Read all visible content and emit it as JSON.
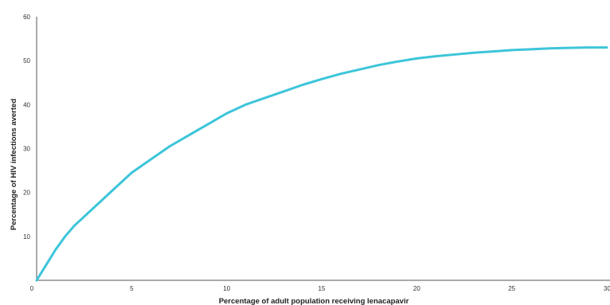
{
  "chart_data": {
    "type": "line",
    "title": "",
    "xlabel": "Percentage of adult population receiving lenacapavir",
    "ylabel": "Percentage of HIV infections averted",
    "xlim": [
      0,
      30
    ],
    "ylim": [
      0,
      60
    ],
    "x_ticks": [
      0,
      5,
      10,
      15,
      20,
      25,
      30
    ],
    "y_ticks": [
      10,
      20,
      30,
      40,
      50,
      60
    ],
    "grid": false,
    "legend": "none",
    "series": [
      {
        "color": "#3dc5da",
        "x": [
          0,
          0.5,
          1,
          1.5,
          2,
          3,
          4,
          5,
          6,
          7,
          8,
          9,
          10,
          11,
          12,
          13,
          14,
          15,
          16,
          17,
          18,
          19,
          20,
          21,
          22,
          23,
          24,
          25,
          26,
          27,
          28,
          29,
          30
        ],
        "y": [
          0,
          3.5,
          7,
          10,
          12.5,
          16.5,
          20.5,
          24.5,
          27.5,
          30.5,
          33,
          35.5,
          38,
          40,
          41.5,
          43,
          44.5,
          45.8,
          47,
          48,
          49,
          49.8,
          50.5,
          51,
          51.4,
          51.8,
          52.1,
          52.4,
          52.6,
          52.8,
          52.9,
          53,
          53
        ]
      }
    ]
  }
}
